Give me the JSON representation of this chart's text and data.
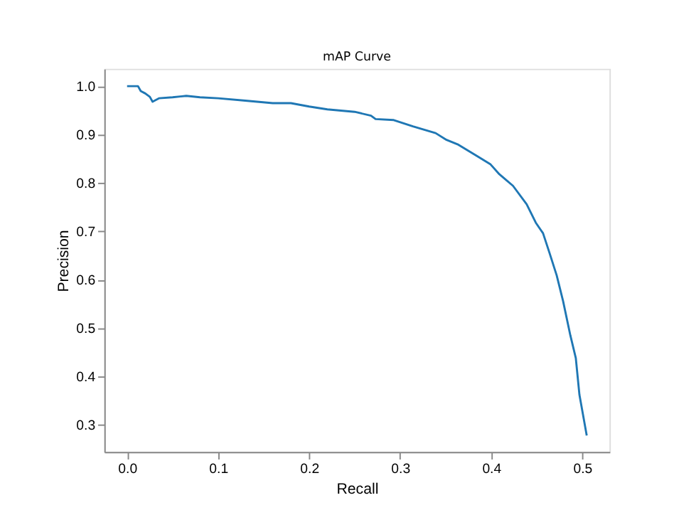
{
  "chart_data": {
    "type": "line",
    "title": "mAP Curve",
    "xlabel": "Recall",
    "ylabel": "Precision",
    "x": [
      0,
      0.012,
      0.015,
      0.02,
      0.025,
      0.028,
      0.035,
      0.05,
      0.065,
      0.08,
      0.1,
      0.13,
      0.16,
      0.18,
      0.2,
      0.22,
      0.25,
      0.268,
      0.273,
      0.293,
      0.314,
      0.339,
      0.351,
      0.364,
      0.384,
      0.399,
      0.409,
      0.424,
      0.439,
      0.449,
      0.457,
      0.464,
      0.472,
      0.479,
      0.487,
      0.493,
      0.497,
      0.505
    ],
    "series": [
      {
        "color": "#1f77b4",
        "values": [
          1.0,
          1.0,
          0.99,
          0.985,
          0.978,
          0.968,
          0.975,
          0.977,
          0.98,
          0.977,
          0.975,
          0.97,
          0.965,
          0.965,
          0.958,
          0.952,
          0.947,
          0.939,
          0.932,
          0.93,
          0.917,
          0.903,
          0.889,
          0.879,
          0.856,
          0.839,
          0.818,
          0.794,
          0.756,
          0.718,
          0.696,
          0.656,
          0.609,
          0.556,
          0.485,
          0.438,
          0.362,
          0.278
        ]
      }
    ],
    "xlim": [
      -0.025,
      0.53
    ],
    "ylim": [
      0.244,
      1.036
    ],
    "xticks": [
      {
        "value": 0,
        "label": "0.0"
      },
      0.1,
      0.2,
      0.3,
      0.4,
      0.5
    ],
    "yticks": [
      0.3,
      0.4,
      0.5,
      0.6,
      0.7,
      0.8,
      0.9,
      {
        "value": 1,
        "label": "1.0"
      }
    ],
    "grid": false,
    "marker": "none",
    "line_style": "solid"
  }
}
